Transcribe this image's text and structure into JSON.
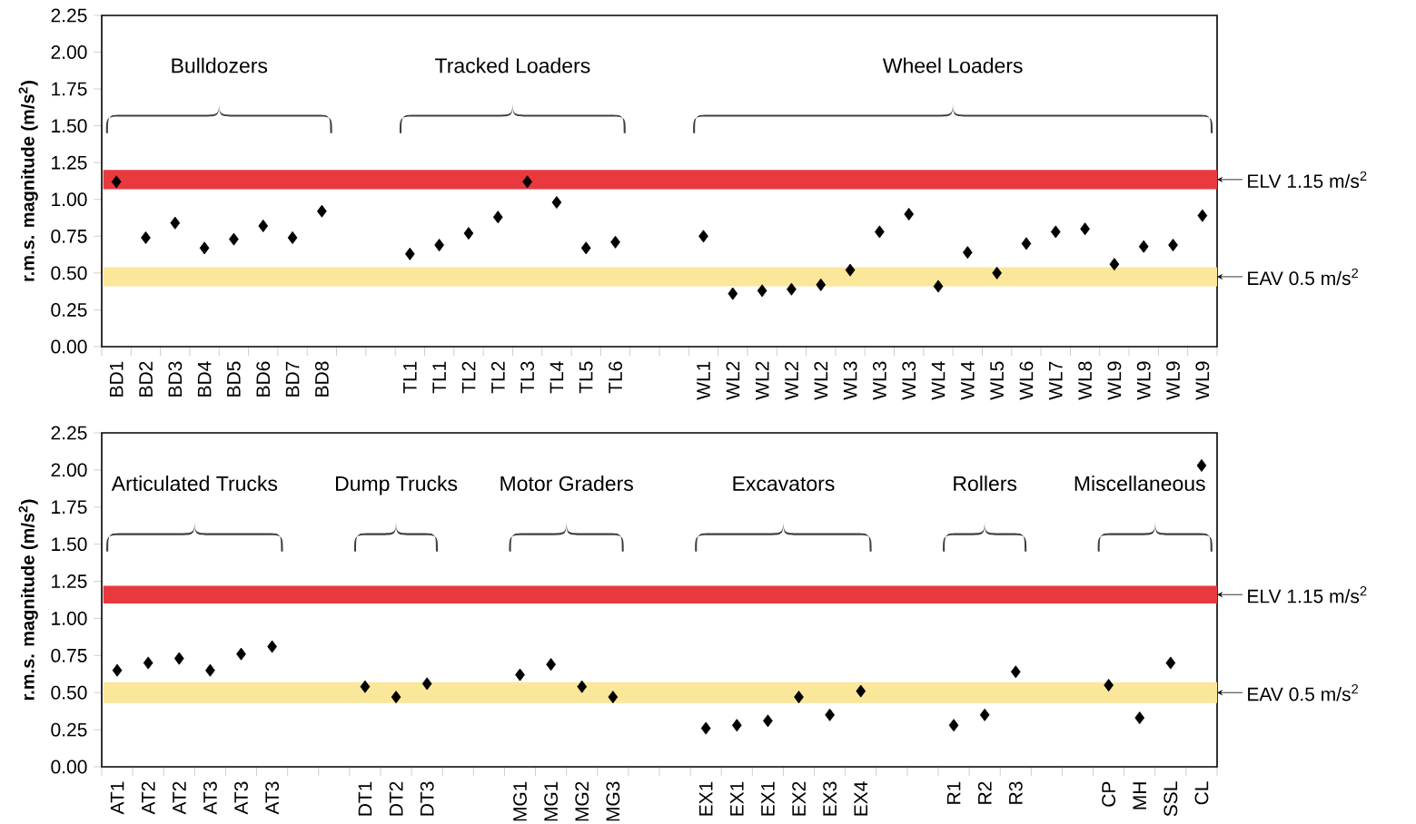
{
  "chart_data": [
    {
      "type": "scatter",
      "ylabel": "r.m.s. magnitude (m/s$^{2}$)",
      "marker": "diamond",
      "color": "#000000",
      "grid": false,
      "categories": [
        "BD1",
        "BD2",
        "BD3",
        "BD4",
        "BD5",
        "BD6",
        "BD7",
        "BD8",
        null,
        null,
        "TL1",
        "TL1",
        "TL2",
        "TL2",
        "TL3",
        "TL4",
        "TL5",
        "TL6",
        null,
        null,
        "WL1",
        "WL2",
        "WL2",
        "WL2",
        "WL2",
        "WL3",
        "WL3",
        "WL3",
        "WL4",
        "WL4",
        "WL5",
        "WL6",
        "WL7",
        "WL8",
        "WL9",
        "WL9",
        "WL9",
        "WL9"
      ],
      "values": [
        1.12,
        0.74,
        0.84,
        0.67,
        0.73,
        0.82,
        0.74,
        0.92,
        null,
        null,
        0.63,
        0.69,
        0.77,
        0.88,
        1.12,
        0.98,
        0.67,
        0.71,
        null,
        null,
        0.75,
        0.36,
        0.38,
        0.39,
        0.42,
        0.52,
        0.78,
        0.9,
        0.41,
        0.64,
        0.5,
        0.7,
        0.78,
        0.8,
        0.56,
        0.68,
        0.69,
        0.89
      ],
      "ylim": [
        0,
        2.25
      ],
      "yticks": [
        {
          "value": 0,
          "label": "0.00"
        },
        {
          "value": 0.25,
          "label": "0.25"
        },
        {
          "value": 0.5,
          "label": "0.50"
        },
        {
          "value": 0.75,
          "label": "0.75"
        },
        {
          "value": 1,
          "label": "1.00"
        },
        {
          "value": 1.25,
          "label": "1.25"
        },
        {
          "value": 1.5,
          "label": "1.50"
        },
        {
          "value": 1.75,
          "label": "1.75"
        },
        {
          "value": 2,
          "label": "2.00"
        },
        {
          "value": 2.25,
          "label": "2.25"
        }
      ],
      "bands": [
        {
          "axis": "y",
          "from": 1.07,
          "to": 1.2,
          "label": "ELV 1.15 m/s$^{2}$",
          "color": "#e8393f"
        },
        {
          "axis": "y",
          "from": 0.41,
          "to": 0.54,
          "label": "EAV 0.5 m/s$^{2}$",
          "color": "#fbe79a"
        }
      ],
      "annotations": [
        "Bulldozers",
        "Tracked Loaders",
        "Wheel Loaders"
      ]
    },
    {
      "type": "scatter",
      "ylabel": "r.m.s. magnitude (m/s$^{2}$)",
      "marker": "diamond",
      "color": "#000000",
      "grid": false,
      "categories": [
        "AT1",
        "AT2",
        "AT2",
        "AT3",
        "AT3",
        "AT3",
        null,
        null,
        "DT1",
        "DT2",
        "DT3",
        null,
        null,
        "MG1",
        "MG1",
        "MG2",
        "MG3",
        null,
        null,
        "EX1",
        "EX1",
        "EX1",
        "EX2",
        "EX3",
        "EX4",
        null,
        null,
        "R1",
        "R2",
        "R3",
        null,
        null,
        "CP",
        "MH",
        "SSL",
        "CL"
      ],
      "values": [
        0.65,
        0.7,
        0.73,
        0.65,
        0.76,
        0.81,
        null,
        null,
        0.54,
        0.47,
        0.56,
        null,
        null,
        0.62,
        0.69,
        0.54,
        0.47,
        null,
        null,
        0.26,
        0.28,
        0.31,
        0.47,
        0.35,
        0.51,
        null,
        null,
        0.28,
        0.35,
        0.64,
        null,
        null,
        0.55,
        0.33,
        0.7,
        2.03
      ],
      "ylim": [
        0,
        2.25
      ],
      "yticks": [
        {
          "value": 0,
          "label": "0.00"
        },
        {
          "value": 0.25,
          "label": "0.25"
        },
        {
          "value": 0.5,
          "label": "0.50"
        },
        {
          "value": 0.75,
          "label": "0.75"
        },
        {
          "value": 1,
          "label": "1.00"
        },
        {
          "value": 1.25,
          "label": "1.25"
        },
        {
          "value": 1.5,
          "label": "1.50"
        },
        {
          "value": 1.75,
          "label": "1.75"
        },
        {
          "value": 2,
          "label": "2.00"
        },
        {
          "value": 2.25,
          "label": "2.25"
        }
      ],
      "bands": [
        {
          "axis": "y",
          "from": 1.1,
          "to": 1.22,
          "label": "ELV 1.15 m/s$^{2}$",
          "color": "#e8393f"
        },
        {
          "axis": "y",
          "from": 0.43,
          "to": 0.57,
          "label": "EAV 0.5 m/s$^{2}$",
          "color": "#fbe79a"
        }
      ],
      "annotations": [
        "Articulated Trucks",
        "Dump Trucks",
        "Motor Graders",
        "Excavators",
        "Rollers",
        "Miscellaneous"
      ]
    }
  ]
}
